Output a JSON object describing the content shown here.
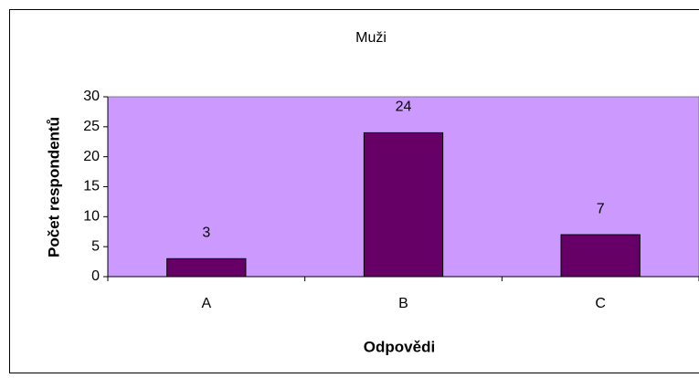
{
  "chart_data": {
    "type": "bar",
    "title": "Muži",
    "x_label": "Odpovědi",
    "y_label": "Počet respondentů",
    "categories": [
      "A",
      "B",
      "C"
    ],
    "values": [
      3,
      24,
      7
    ],
    "color": "#660066",
    "plot_background": "#cc99ff",
    "ylim": [
      0,
      30
    ],
    "yticks": [
      0,
      5,
      10,
      15,
      20,
      25,
      30
    ],
    "grid": false
  }
}
